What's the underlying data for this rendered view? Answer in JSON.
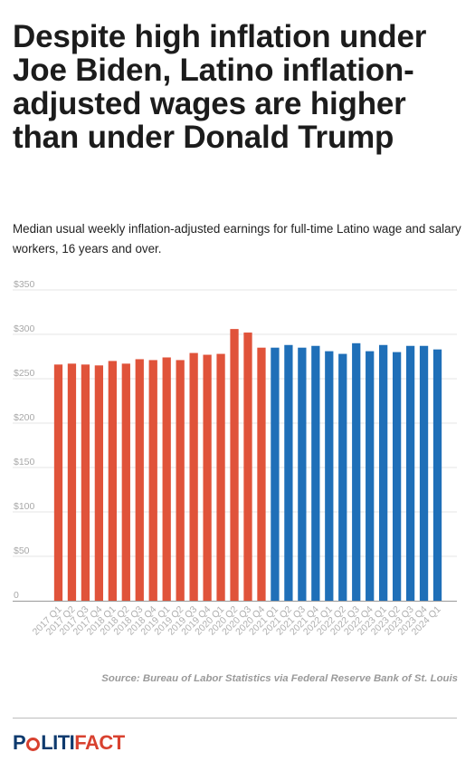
{
  "headline": "Despite high inflation under Joe Biden, Latino inflation-adjusted wages are higher than under Donald Trump",
  "subtitle": "Median usual weekly inflation-adjusted earnings for full-time Latino wage and salary workers, 16 years and over.",
  "source": "Source: Bureau of Labor Statistics via Federal Reserve Bank of St. Louis",
  "logo": {
    "part1": "P",
    "part2": "LITI",
    "part3": "FACT",
    "colors": {
      "navy": "#0e3a6e",
      "red": "#d8412f"
    }
  },
  "chart_data": {
    "type": "bar",
    "title": "",
    "xlabel": "",
    "ylabel": "",
    "ylim": [
      0,
      350
    ],
    "yticks": [
      0,
      50,
      100,
      150,
      200,
      250,
      300,
      350
    ],
    "ytick_labels": [
      "0",
      "$50",
      "$100",
      "$150",
      "$200",
      "$250",
      "$300",
      "$350"
    ],
    "grid": true,
    "legend": "none",
    "colors": {
      "trump": "#e0533a",
      "biden": "#1f6fb8"
    },
    "categories": [
      "2017 Q1",
      "2017 Q2",
      "2017 Q3",
      "2017 Q4",
      "2018 Q1",
      "2018 Q2",
      "2018 Q3",
      "2018 Q4",
      "2019 Q1",
      "2019 Q2",
      "2019 Q3",
      "2019 Q4",
      "2020 Q1",
      "2020 Q2",
      "2020 Q3",
      "2020 Q4",
      "2021 Q1",
      "2021 Q2",
      "2021 Q3",
      "2021 Q4",
      "2022 Q1",
      "2022 Q2",
      "2022 Q3",
      "2022 Q4",
      "2023 Q1",
      "2023 Q2",
      "2023 Q3",
      "2023 Q4",
      "2024 Q1"
    ],
    "values": [
      266,
      267,
      266,
      265,
      270,
      267,
      272,
      271,
      274,
      271,
      279,
      277,
      278,
      306,
      302,
      285,
      285,
      288,
      285,
      287,
      281,
      278,
      290,
      281,
      288,
      280,
      287,
      287,
      283
    ],
    "groups": [
      "trump",
      "trump",
      "trump",
      "trump",
      "trump",
      "trump",
      "trump",
      "trump",
      "trump",
      "trump",
      "trump",
      "trump",
      "trump",
      "trump",
      "trump",
      "trump",
      "biden",
      "biden",
      "biden",
      "biden",
      "biden",
      "biden",
      "biden",
      "biden",
      "biden",
      "biden",
      "biden",
      "biden",
      "biden"
    ]
  }
}
